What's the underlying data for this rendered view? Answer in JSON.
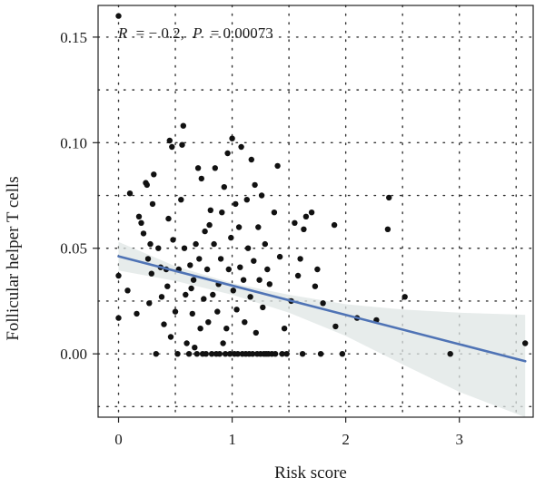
{
  "chart_data": {
    "type": "scatter",
    "title": "",
    "xlabel": "Risk score",
    "ylabel": "Follicular helper T cells",
    "annotation": {
      "r_label": "R",
      "r_value": "= − 0.2,",
      "p_label": "P",
      "p_value": "= 0.00073"
    },
    "xlim": [
      -0.18,
      3.65
    ],
    "ylim": [
      -0.03,
      0.165
    ],
    "x_ticks": [
      0,
      1,
      2,
      3
    ],
    "x_tick_labels": [
      "0",
      "1",
      "2",
      "3"
    ],
    "y_ticks": [
      0.0,
      0.05,
      0.1,
      0.15
    ],
    "y_tick_labels": [
      "0.00",
      "0.05",
      "0.10",
      "0.15"
    ],
    "grid": true,
    "legend": "none",
    "colors": {
      "points": "#111111",
      "regression_line": "#4f73b5",
      "confidence_band": "#dfe6e4",
      "grid": "#333333",
      "axis": "#222222"
    },
    "regression": {
      "x": [
        0,
        3.58
      ],
      "y": [
        0.0462,
        -0.0035
      ]
    },
    "confidence_band": {
      "x": [
        0,
        0.5,
        1.0,
        1.5,
        2.0,
        2.5,
        3.0,
        3.58
      ],
      "upper": [
        0.053,
        0.0415,
        0.0335,
        0.028,
        0.0235,
        0.021,
        0.0195,
        0.0185
      ],
      "lower": [
        0.0395,
        0.0345,
        0.028,
        0.0195,
        0.0085,
        -0.005,
        -0.018,
        -0.03
      ]
    },
    "points": [
      [
        0.0,
        0.16
      ],
      [
        0.0,
        0.037
      ],
      [
        0.0,
        0.017
      ],
      [
        0.08,
        0.03
      ],
      [
        0.1,
        0.076
      ],
      [
        0.16,
        0.019
      ],
      [
        0.18,
        0.065
      ],
      [
        0.2,
        0.062
      ],
      [
        0.22,
        0.057
      ],
      [
        0.24,
        0.081
      ],
      [
        0.25,
        0.08
      ],
      [
        0.26,
        0.045
      ],
      [
        0.27,
        0.024
      ],
      [
        0.28,
        0.052
      ],
      [
        0.29,
        0.038
      ],
      [
        0.3,
        0.071
      ],
      [
        0.31,
        0.085
      ],
      [
        0.33,
        0.0
      ],
      [
        0.35,
        0.05
      ],
      [
        0.37,
        0.041
      ],
      [
        0.38,
        0.027
      ],
      [
        0.4,
        0.014
      ],
      [
        0.42,
        0.04
      ],
      [
        0.43,
        0.032
      ],
      [
        0.44,
        0.064
      ],
      [
        0.45,
        0.101
      ],
      [
        0.46,
        0.008
      ],
      [
        0.47,
        0.098
      ],
      [
        0.48,
        0.054
      ],
      [
        0.5,
        0.02
      ],
      [
        0.52,
        0.0
      ],
      [
        0.53,
        0.04
      ],
      [
        0.55,
        0.073
      ],
      [
        0.56,
        0.099
      ],
      [
        0.57,
        0.108
      ],
      [
        0.58,
        0.05
      ],
      [
        0.59,
        0.028
      ],
      [
        0.6,
        0.005
      ],
      [
        0.62,
        0.0
      ],
      [
        0.63,
        0.042
      ],
      [
        0.64,
        0.031
      ],
      [
        0.65,
        0.019
      ],
      [
        0.66,
        0.035
      ],
      [
        0.67,
        0.003
      ],
      [
        0.68,
        0.052
      ],
      [
        0.69,
        0.0
      ],
      [
        0.7,
        0.088
      ],
      [
        0.71,
        0.045
      ],
      [
        0.72,
        0.012
      ],
      [
        0.73,
        0.083
      ],
      [
        0.74,
        0.0
      ],
      [
        0.75,
        0.026
      ],
      [
        0.76,
        0.058
      ],
      [
        0.77,
        0.0
      ],
      [
        0.78,
        0.04
      ],
      [
        0.79,
        0.015
      ],
      [
        0.8,
        0.061
      ],
      [
        0.81,
        0.068
      ],
      [
        0.82,
        0.0
      ],
      [
        0.83,
        0.028
      ],
      [
        0.84,
        0.052
      ],
      [
        0.85,
        0.088
      ],
      [
        0.86,
        0.0
      ],
      [
        0.87,
        0.02
      ],
      [
        0.88,
        0.033
      ],
      [
        0.89,
        0.0
      ],
      [
        0.9,
        0.045
      ],
      [
        0.91,
        0.067
      ],
      [
        0.92,
        0.005
      ],
      [
        0.93,
        0.079
      ],
      [
        0.94,
        0.0
      ],
      [
        0.95,
        0.012
      ],
      [
        0.96,
        0.095
      ],
      [
        0.97,
        0.04
      ],
      [
        0.98,
        0.0
      ],
      [
        0.99,
        0.055
      ],
      [
        1.0,
        0.102
      ],
      [
        1.01,
        0.03
      ],
      [
        1.02,
        0.0
      ],
      [
        1.03,
        0.071
      ],
      [
        1.04,
        0.021
      ],
      [
        1.05,
        0.0
      ],
      [
        1.06,
        0.06
      ],
      [
        1.07,
        0.041
      ],
      [
        1.08,
        0.098
      ],
      [
        1.09,
        0.0
      ],
      [
        1.1,
        0.035
      ],
      [
        1.11,
        0.015
      ],
      [
        1.12,
        0.0
      ],
      [
        1.13,
        0.073
      ],
      [
        1.14,
        0.05
      ],
      [
        1.15,
        0.0
      ],
      [
        1.16,
        0.027
      ],
      [
        1.17,
        0.092
      ],
      [
        1.18,
        0.0
      ],
      [
        1.19,
        0.044
      ],
      [
        1.2,
        0.08
      ],
      [
        1.21,
        0.01
      ],
      [
        1.22,
        0.0
      ],
      [
        1.23,
        0.06
      ],
      [
        1.24,
        0.035
      ],
      [
        1.25,
        0.0
      ],
      [
        1.26,
        0.075
      ],
      [
        1.27,
        0.022
      ],
      [
        1.28,
        0.0
      ],
      [
        1.29,
        0.052
      ],
      [
        1.3,
        0.0
      ],
      [
        1.31,
        0.04
      ],
      [
        1.32,
        0.0
      ],
      [
        1.33,
        0.033
      ],
      [
        1.35,
        0.0
      ],
      [
        1.37,
        0.067
      ],
      [
        1.38,
        0.0
      ],
      [
        1.4,
        0.089
      ],
      [
        1.42,
        0.046
      ],
      [
        1.44,
        0.0
      ],
      [
        1.46,
        0.012
      ],
      [
        1.48,
        0.0
      ],
      [
        1.52,
        0.025
      ],
      [
        1.55,
        0.062
      ],
      [
        1.58,
        0.037
      ],
      [
        1.6,
        0.045
      ],
      [
        1.62,
        0.0
      ],
      [
        1.63,
        0.059
      ],
      [
        1.65,
        0.065
      ],
      [
        1.7,
        0.067
      ],
      [
        1.73,
        0.032
      ],
      [
        1.75,
        0.04
      ],
      [
        1.78,
        0.0
      ],
      [
        1.8,
        0.024
      ],
      [
        1.9,
        0.061
      ],
      [
        1.91,
        0.013
      ],
      [
        1.97,
        0.0
      ],
      [
        2.1,
        0.017
      ],
      [
        2.27,
        0.016
      ],
      [
        2.37,
        0.059
      ],
      [
        2.38,
        0.074
      ],
      [
        2.52,
        0.027
      ],
      [
        2.92,
        0.0
      ],
      [
        3.58,
        0.005
      ]
    ]
  }
}
